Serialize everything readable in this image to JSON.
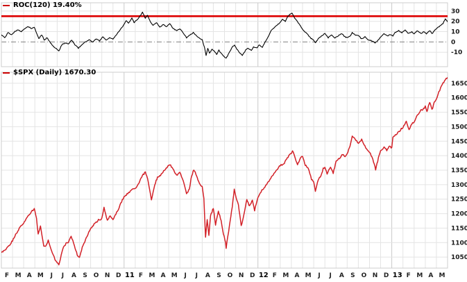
{
  "chart_data": [
    {
      "type": "line",
      "label": "ROC(120)",
      "current_value": "19.40%",
      "legend": "ROC(120) 19.40%",
      "line_color": "#000000",
      "ylim": [
        -24,
        38
      ],
      "yticks": [
        30,
        20,
        10,
        0,
        -10
      ],
      "zero_line": true,
      "threshold_line": {
        "value": 25,
        "color": "#dd0000"
      },
      "points": [
        [
          0,
          7
        ],
        [
          0.3,
          4
        ],
        [
          0.6,
          9
        ],
        [
          0.9,
          7
        ],
        [
          1.2,
          10
        ],
        [
          1.5,
          12
        ],
        [
          1.8,
          10
        ],
        [
          2.1,
          13
        ],
        [
          2.4,
          15
        ],
        [
          2.7,
          13
        ],
        [
          2.95,
          14
        ],
        [
          3.15,
          9
        ],
        [
          3.35,
          3
        ],
        [
          3.6,
          7
        ],
        [
          3.85,
          2
        ],
        [
          4.1,
          4
        ],
        [
          4.4,
          -1
        ],
        [
          4.7,
          -5
        ],
        [
          5,
          -7
        ],
        [
          5.15,
          -9
        ],
        [
          5.4,
          -3
        ],
        [
          5.7,
          -1
        ],
        [
          6,
          -2
        ],
        [
          6.3,
          2
        ],
        [
          6.6,
          -3
        ],
        [
          6.9,
          -6
        ],
        [
          7.2,
          -3
        ],
        [
          7.5,
          0
        ],
        [
          7.9,
          2
        ],
        [
          8.2,
          0
        ],
        [
          8.5,
          3
        ],
        [
          8.8,
          1
        ],
        [
          9.1,
          5
        ],
        [
          9.4,
          2
        ],
        [
          9.7,
          4
        ],
        [
          10,
          3
        ],
        [
          10.3,
          7
        ],
        [
          10.6,
          11
        ],
        [
          11,
          17
        ],
        [
          11.2,
          21
        ],
        [
          11.4,
          18
        ],
        [
          11.7,
          23
        ],
        [
          11.9,
          19
        ],
        [
          12.2,
          22
        ],
        [
          12.5,
          26
        ],
        [
          12.65,
          29
        ],
        [
          12.9,
          23
        ],
        [
          13.1,
          26
        ],
        [
          13.35,
          20
        ],
        [
          13.6,
          16
        ],
        [
          13.9,
          19
        ],
        [
          14.2,
          14
        ],
        [
          14.5,
          17
        ],
        [
          14.8,
          15
        ],
        [
          15.1,
          18
        ],
        [
          15.4,
          13
        ],
        [
          15.7,
          11
        ],
        [
          16,
          13
        ],
        [
          16.3,
          9
        ],
        [
          16.6,
          4
        ],
        [
          16.9,
          7
        ],
        [
          17.2,
          9
        ],
        [
          17.5,
          6
        ],
        [
          17.8,
          3
        ],
        [
          18,
          2
        ],
        [
          18.2,
          -5
        ],
        [
          18.35,
          -13
        ],
        [
          18.5,
          -6
        ],
        [
          18.65,
          -11
        ],
        [
          18.9,
          -7
        ],
        [
          19.1,
          -9
        ],
        [
          19.3,
          -12
        ],
        [
          19.5,
          -8
        ],
        [
          19.7,
          -11
        ],
        [
          19.95,
          -14
        ],
        [
          20.15,
          -16
        ],
        [
          20.4,
          -11
        ],
        [
          20.7,
          -5
        ],
        [
          20.9,
          -3
        ],
        [
          21.1,
          -7
        ],
        [
          21.4,
          -11
        ],
        [
          21.6,
          -13
        ],
        [
          21.9,
          -8
        ],
        [
          22.1,
          -6
        ],
        [
          22.4,
          -8
        ],
        [
          22.6,
          -5
        ],
        [
          22.9,
          -6
        ],
        [
          23.1,
          -3
        ],
        [
          23.4,
          -5
        ],
        [
          23.7,
          1
        ],
        [
          24,
          7
        ],
        [
          24.2,
          11
        ],
        [
          24.5,
          14
        ],
        [
          24.8,
          17
        ],
        [
          25,
          19
        ],
        [
          25.2,
          22
        ],
        [
          25.45,
          20
        ],
        [
          25.7,
          25
        ],
        [
          25.9,
          27
        ],
        [
          26.05,
          28
        ],
        [
          26.3,
          23
        ],
        [
          26.6,
          19
        ],
        [
          26.9,
          14
        ],
        [
          27.1,
          11
        ],
        [
          27.4,
          8
        ],
        [
          27.7,
          4
        ],
        [
          27.95,
          2
        ],
        [
          28.15,
          -1
        ],
        [
          28.4,
          3
        ],
        [
          28.7,
          6
        ],
        [
          29,
          8
        ],
        [
          29.3,
          4
        ],
        [
          29.6,
          7
        ],
        [
          29.9,
          4
        ],
        [
          30.2,
          6
        ],
        [
          30.5,
          8
        ],
        [
          30.8,
          5
        ],
        [
          31,
          4
        ],
        [
          31.3,
          6
        ],
        [
          31.45,
          9
        ],
        [
          31.7,
          7
        ],
        [
          32,
          6
        ],
        [
          32.3,
          3
        ],
        [
          32.6,
          5
        ],
        [
          32.9,
          2
        ],
        [
          33.2,
          1
        ],
        [
          33.5,
          -1
        ],
        [
          33.8,
          2
        ],
        [
          34,
          5
        ],
        [
          34.3,
          8
        ],
        [
          34.6,
          6
        ],
        [
          34.9,
          7
        ],
        [
          35.1,
          6
        ],
        [
          35.3,
          9
        ],
        [
          35.6,
          11
        ],
        [
          35.9,
          9
        ],
        [
          36.2,
          12
        ],
        [
          36.5,
          8
        ],
        [
          36.8,
          10
        ],
        [
          37,
          8
        ],
        [
          37.3,
          11
        ],
        [
          37.6,
          8
        ],
        [
          37.9,
          10
        ],
        [
          38.1,
          8
        ],
        [
          38.4,
          11
        ],
        [
          38.6,
          8
        ],
        [
          38.9,
          12
        ],
        [
          39.1,
          14
        ],
        [
          39.4,
          16
        ],
        [
          39.6,
          18
        ],
        [
          39.8,
          22.5
        ],
        [
          40,
          19.4
        ]
      ]
    },
    {
      "type": "line",
      "label": "$SPX (Daily)",
      "last_price": "1670.30",
      "legend": "$SPX (Daily) 1670.30",
      "line_color": "#d22027",
      "ylim": [
        1012,
        1688
      ],
      "yticks": [
        1650,
        1600,
        1550,
        1500,
        1450,
        1400,
        1350,
        1300,
        1250,
        1200,
        1150,
        1100,
        1050
      ],
      "points": [
        [
          0,
          1066
        ],
        [
          0.4,
          1078
        ],
        [
          0.8,
          1094
        ],
        [
          1.2,
          1121
        ],
        [
          1.6,
          1150
        ],
        [
          2,
          1169
        ],
        [
          2.4,
          1192
        ],
        [
          2.7,
          1206
        ],
        [
          2.95,
          1217
        ],
        [
          3.15,
          1186
        ],
        [
          3.3,
          1128
        ],
        [
          3.5,
          1158
        ],
        [
          3.8,
          1090
        ],
        [
          4,
          1089
        ],
        [
          4.2,
          1108
        ],
        [
          4.5,
          1070
        ],
        [
          4.8,
          1042
        ],
        [
          5,
          1031
        ],
        [
          5.15,
          1023
        ],
        [
          5.5,
          1078
        ],
        [
          5.8,
          1098
        ],
        [
          6,
          1102
        ],
        [
          6.25,
          1122
        ],
        [
          6.55,
          1090
        ],
        [
          6.8,
          1057
        ],
        [
          7,
          1049
        ],
        [
          7.25,
          1082
        ],
        [
          7.55,
          1112
        ],
        [
          7.9,
          1141
        ],
        [
          8.3,
          1163
        ],
        [
          8.7,
          1178
        ],
        [
          9,
          1183
        ],
        [
          9.2,
          1220
        ],
        [
          9.5,
          1178
        ],
        [
          9.75,
          1192
        ],
        [
          10,
          1181
        ],
        [
          10.4,
          1208
        ],
        [
          10.7,
          1236
        ],
        [
          11,
          1258
        ],
        [
          11.4,
          1272
        ],
        [
          11.7,
          1283
        ],
        [
          12,
          1286
        ],
        [
          12.4,
          1312
        ],
        [
          12.65,
          1332
        ],
        [
          12.9,
          1343
        ],
        [
          13.1,
          1321
        ],
        [
          13.45,
          1249
        ],
        [
          13.75,
          1300
        ],
        [
          14,
          1326
        ],
        [
          14.4,
          1337
        ],
        [
          14.7,
          1355
        ],
        [
          15,
          1364
        ],
        [
          15.1,
          1370
        ],
        [
          15.45,
          1348
        ],
        [
          15.7,
          1331
        ],
        [
          16,
          1345
        ],
        [
          16.3,
          1313
        ],
        [
          16.6,
          1268
        ],
        [
          16.85,
          1285
        ],
        [
          17,
          1321
        ],
        [
          17.25,
          1353
        ],
        [
          17.5,
          1331
        ],
        [
          17.75,
          1305
        ],
        [
          18,
          1292
        ],
        [
          18.15,
          1252
        ],
        [
          18.3,
          1120
        ],
        [
          18.45,
          1178
        ],
        [
          18.6,
          1123
        ],
        [
          18.75,
          1192
        ],
        [
          19,
          1219
        ],
        [
          19.2,
          1162
        ],
        [
          19.45,
          1209
        ],
        [
          19.7,
          1175
        ],
        [
          19.9,
          1131
        ],
        [
          20.1,
          1099
        ],
        [
          20.15,
          1082
        ],
        [
          20.45,
          1160
        ],
        [
          20.7,
          1225
        ],
        [
          20.88,
          1285
        ],
        [
          21.05,
          1253
        ],
        [
          21.25,
          1230
        ],
        [
          21.5,
          1158
        ],
        [
          21.75,
          1196
        ],
        [
          22,
          1247
        ],
        [
          22.25,
          1225
        ],
        [
          22.5,
          1246
        ],
        [
          22.7,
          1211
        ],
        [
          23,
          1258
        ],
        [
          23.35,
          1280
        ],
        [
          23.7,
          1296
        ],
        [
          24,
          1312
        ],
        [
          24.3,
          1330
        ],
        [
          24.7,
          1352
        ],
        [
          25,
          1366
        ],
        [
          25.3,
          1371
        ],
        [
          25.7,
          1396
        ],
        [
          26,
          1408
        ],
        [
          26.1,
          1419
        ],
        [
          26.55,
          1368
        ],
        [
          26.8,
          1392
        ],
        [
          27,
          1398
        ],
        [
          27.25,
          1368
        ],
        [
          27.5,
          1358
        ],
        [
          27.8,
          1318
        ],
        [
          28,
          1310
        ],
        [
          28.15,
          1278
        ],
        [
          28.4,
          1315
        ],
        [
          28.65,
          1332
        ],
        [
          28.85,
          1355
        ],
        [
          29,
          1362
        ],
        [
          29.2,
          1336
        ],
        [
          29.5,
          1362
        ],
        [
          29.75,
          1340
        ],
        [
          30,
          1379
        ],
        [
          30.3,
          1391
        ],
        [
          30.6,
          1406
        ],
        [
          30.8,
          1396
        ],
        [
          31,
          1407
        ],
        [
          31.25,
          1430
        ],
        [
          31.45,
          1466
        ],
        [
          31.7,
          1458
        ],
        [
          32,
          1441
        ],
        [
          32.3,
          1457
        ],
        [
          32.6,
          1432
        ],
        [
          33,
          1412
        ],
        [
          33.3,
          1388
        ],
        [
          33.55,
          1353
        ],
        [
          33.8,
          1391
        ],
        [
          34,
          1416
        ],
        [
          34.3,
          1430
        ],
        [
          34.55,
          1419
        ],
        [
          34.8,
          1432
        ],
        [
          35,
          1426
        ],
        [
          35.1,
          1462
        ],
        [
          35.4,
          1473
        ],
        [
          35.7,
          1486
        ],
        [
          36,
          1498
        ],
        [
          36.3,
          1520
        ],
        [
          36.55,
          1488
        ],
        [
          36.8,
          1512
        ],
        [
          37,
          1515
        ],
        [
          37.3,
          1541
        ],
        [
          37.6,
          1556
        ],
        [
          37.85,
          1563
        ],
        [
          38,
          1569
        ],
        [
          38.15,
          1553
        ],
        [
          38.4,
          1586
        ],
        [
          38.6,
          1558
        ],
        [
          38.8,
          1582
        ],
        [
          39,
          1598
        ],
        [
          39.3,
          1626
        ],
        [
          39.6,
          1651
        ],
        [
          39.8,
          1662
        ],
        [
          40,
          1670.3
        ]
      ]
    }
  ],
  "x_axis": {
    "labels": [
      "F",
      "M",
      "A",
      "M",
      "J",
      "J",
      "A",
      "S",
      "O",
      "N",
      "D",
      "11",
      "F",
      "M",
      "A",
      "M",
      "J",
      "J",
      "A",
      "S",
      "O",
      "N",
      "D",
      "12",
      "F",
      "M",
      "A",
      "M",
      "J",
      "J",
      "A",
      "S",
      "O",
      "N",
      "D",
      "13",
      "F",
      "M",
      "A",
      "M"
    ],
    "year_tick_indices": [
      11,
      23,
      35
    ],
    "range_months": [
      0,
      40
    ]
  },
  "colors": {
    "grid": "#e4e4e4",
    "grid_year": "#c9c9c9",
    "zero_line": "#808080",
    "tick_text": "#1a1a1a",
    "panel_border": "#cccccc",
    "threshold": "#dd0000",
    "legend_dash": "#cc0000"
  }
}
